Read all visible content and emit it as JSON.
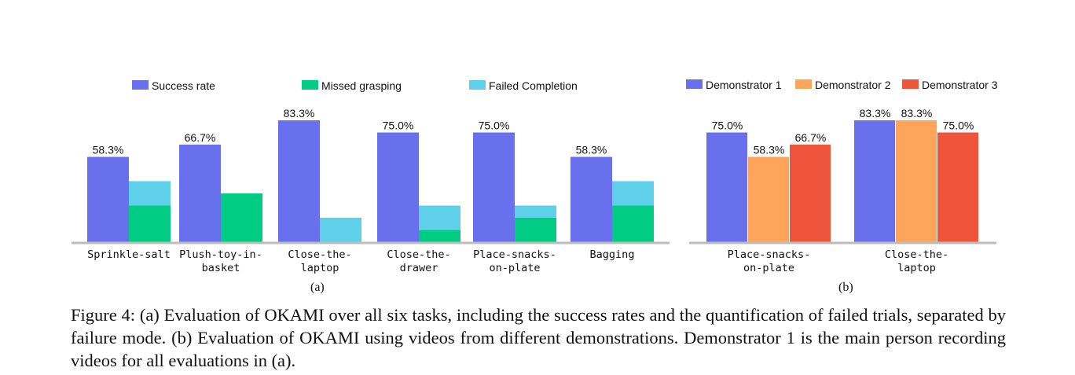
{
  "chart_data": [
    {
      "type": "bar",
      "panel_label": "(a)",
      "categories": [
        "Sprinkle-salt",
        "Plush-toy-in-basket",
        "Close-the-laptop",
        "Close-the-drawer",
        "Place-snacks-on-plate",
        "Bagging"
      ],
      "category_lines": [
        [
          "Sprinkle-salt"
        ],
        [
          "Plush-toy-in-",
          "basket"
        ],
        [
          "Close-the-",
          "laptop"
        ],
        [
          "Close-the-",
          "drawer"
        ],
        [
          "Place-snacks-",
          "on-plate"
        ],
        [
          "Bagging"
        ]
      ],
      "stacked_second_bar": true,
      "series": [
        {
          "name": "Success rate",
          "color": "#6970ee",
          "values": [
            58.3,
            66.7,
            83.3,
            75.0,
            75.0,
            58.3
          ],
          "labels": [
            "58.3%",
            "66.7%",
            "83.3%",
            "75.0%",
            "75.0%",
            "58.3%"
          ]
        },
        {
          "name": "Missed grasping",
          "color": "#00cd83",
          "values": [
            25.0,
            33.3,
            0,
            8.3,
            16.7,
            25.0
          ]
        },
        {
          "name": "Failed Completion",
          "color": "#5fd0ea",
          "values": [
            16.7,
            0,
            16.7,
            16.7,
            8.3,
            16.7
          ]
        }
      ],
      "ylim": [
        0,
        90
      ],
      "grid": false,
      "legend": "top"
    },
    {
      "type": "bar",
      "panel_label": "(b)",
      "categories": [
        "Place-snacks-on-plate",
        "Close-the-laptop"
      ],
      "category_lines": [
        [
          "Place-snacks-",
          "on-plate"
        ],
        [
          "Close-the-",
          "laptop"
        ]
      ],
      "series": [
        {
          "name": "Demonstrator 1",
          "color": "#6970ee",
          "values": [
            75.0,
            83.3
          ],
          "labels": [
            "75.0%",
            "83.3%"
          ]
        },
        {
          "name": "Demonstrator 2",
          "color": "#ffa45b",
          "values": [
            58.3,
            83.3
          ],
          "labels": [
            "58.3%",
            "83.3%"
          ]
        },
        {
          "name": "Demonstrator 3",
          "color": "#ef553b",
          "values": [
            66.7,
            75.0
          ],
          "labels": [
            "66.7%",
            "75.0%"
          ]
        }
      ],
      "ylim": [
        0,
        90
      ],
      "grid": false,
      "legend": "top"
    }
  ],
  "caption": "Figure 4: (a) Evaluation of OKAMI over all six tasks, including the success rates and the quantification of failed trials, separated by failure mode. (b) Evaluation of OKAMI using videos from different demonstrations. Demonstrator 1 is the main person recording videos for all evaluations in (a)."
}
